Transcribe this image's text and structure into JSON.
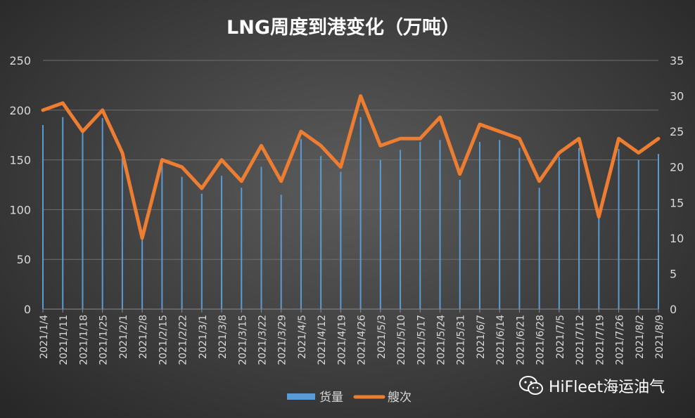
{
  "chart_data": {
    "type": "bar+line",
    "title": "LNG周度到港变化（万吨）",
    "categories": [
      "2021/1/4",
      "2021/1/11",
      "2021/1/18",
      "2021/1/25",
      "2021/2/1",
      "2021/2/8",
      "2021/2/15",
      "2021/2/22",
      "2021/3/1",
      "2021/3/8",
      "2021/3/15",
      "2021/3/22",
      "2021/3/29",
      "2021/4/5",
      "2021/4/12",
      "2021/4/19",
      "2021/4/26",
      "2021/5/3",
      "2021/5/10",
      "2021/5/17",
      "2021/5/24",
      "2021/5/31",
      "2021/6/7",
      "2021/6/14",
      "2021/6/21",
      "2021/6/28",
      "2021/7/5",
      "2021/7/12",
      "2021/7/19",
      "2021/7/26",
      "2021/8/2",
      "2021/8/9"
    ],
    "series": [
      {
        "name": "货量",
        "type": "bar",
        "axis": "left",
        "color": "#5b9bd5",
        "values": [
          185,
          193,
          177,
          192,
          153,
          70,
          151,
          133,
          116,
          134,
          122,
          143,
          115,
          171,
          154,
          138,
          193,
          150,
          160,
          168,
          170,
          130,
          168,
          170,
          162,
          122,
          153,
          162,
          92,
          161,
          150,
          156
        ]
      },
      {
        "name": "艘次",
        "type": "line",
        "axis": "right",
        "color": "#ed7d31",
        "values": [
          28,
          29,
          25,
          28,
          22,
          10,
          21,
          20,
          17,
          21,
          18,
          23,
          18,
          25,
          23,
          20,
          30,
          23,
          24,
          24,
          27,
          19,
          26,
          25,
          24,
          18,
          22,
          24,
          13,
          24,
          22,
          24
        ]
      }
    ],
    "y_left": {
      "min": 0,
      "max": 250,
      "ticks": [
        "0",
        "50",
        "100",
        "150",
        "200",
        "250"
      ]
    },
    "y_right": {
      "min": 0,
      "max": 35,
      "ticks": [
        "0",
        "5",
        "10",
        "15",
        "20",
        "25",
        "30",
        "35"
      ]
    },
    "grid": true,
    "legend_position": "bottom"
  },
  "watermark": {
    "text": "HiFleet海运油气",
    "icon": "wechat-icon"
  }
}
